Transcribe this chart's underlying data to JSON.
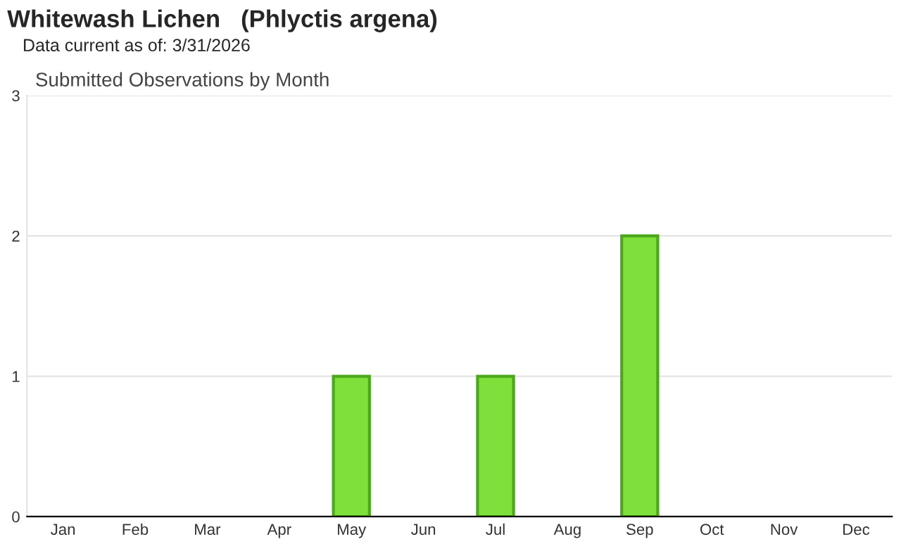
{
  "chart_data": {
    "type": "bar",
    "title": "Whitewash Lichen   (Phlyctis argena)",
    "subtitle": "Data current as of: 3/31/2026",
    "annotations": [
      "Submitted Observations by Month"
    ],
    "categories": [
      "Jan",
      "Feb",
      "Mar",
      "Apr",
      "May",
      "Jun",
      "Jul",
      "Aug",
      "Sep",
      "Oct",
      "Nov",
      "Dec"
    ],
    "values": [
      0,
      0,
      0,
      0,
      1,
      0,
      1,
      0,
      2,
      0,
      0,
      0
    ],
    "color": "#7fe03c",
    "ylim": [
      0,
      3
    ],
    "yticks": [
      0,
      1,
      2,
      3
    ],
    "grid": "y"
  }
}
